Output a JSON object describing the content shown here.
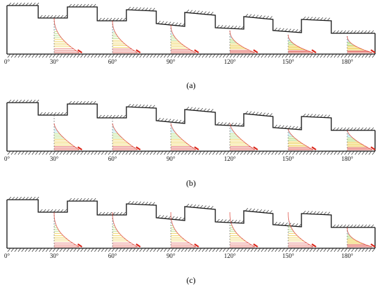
{
  "panels": [
    {
      "id": "a",
      "label": "(a)"
    },
    {
      "id": "b",
      "label": "(b)"
    },
    {
      "id": "c",
      "label": "(c)"
    }
  ],
  "angle_labels": [
    "0°",
    "30°",
    "60°",
    "90°",
    "120°",
    "150°",
    "180°"
  ],
  "colors": {
    "outline": "#111111",
    "hatch": "#333333",
    "guide": "#666666",
    "profile_low": "#7fd4e0",
    "profile_mid": "#9fd45a",
    "profile_high": "#e8c21a",
    "profile_peak": "#d8261a"
  }
}
